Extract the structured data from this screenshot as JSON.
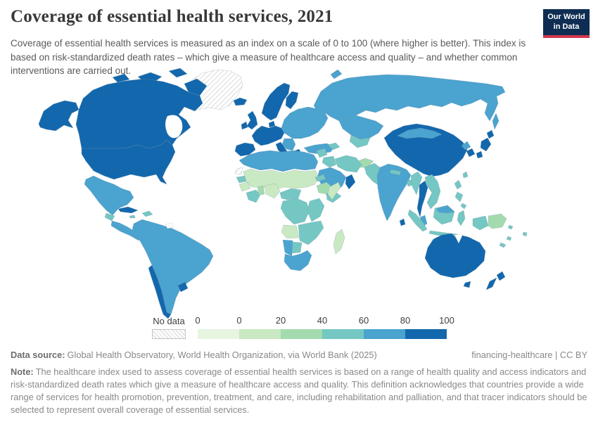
{
  "header": {
    "title": "Coverage of essential health services, 2021",
    "subtitle": "Coverage of essential health services is measured as an index on a scale of 0 to 100 (where higher is better). This index is based on risk-standardized death rates – which give a measure of healthcare access and quality – and whether common interventions are carried out."
  },
  "logo": {
    "line1": "Our World",
    "line2": "in Data",
    "bg": "#0f2d52",
    "accent": "#d2364c"
  },
  "legend": {
    "no_data_label": "No data",
    "tick_labels": [
      "0",
      "0",
      "20",
      "40",
      "60",
      "80",
      "100"
    ],
    "bins": [
      {
        "range": "0-0",
        "color": "#e7f5e1"
      },
      {
        "range": "0-20",
        "color": "#c9e9c2"
      },
      {
        "range": "20-40",
        "color": "#a3dbae"
      },
      {
        "range": "40-60",
        "color": "#74c7c3"
      },
      {
        "range": "60-80",
        "color": "#4ba3cf"
      },
      {
        "range": "80-100",
        "color": "#1368ad"
      }
    ]
  },
  "footer": {
    "source_label": "Data source:",
    "source_text": "Global Health Observatory, World Health Organization, via World Bank (2025)",
    "attribution": "financing-healthcare | CC BY",
    "note_label": "Note:",
    "note_text": "The healthcare index used to assess coverage of essential health services is based on a range of health quality and access indicators and risk-standardized death rates which give a measure of healthcare access and quality. This definition acknowledges that countries provide a wide range of services for health promotion, prevention, treatment, and care, including rehabilitation and palliation, and that tracer indicators should be selected to represent overall coverage of essential services."
  },
  "chart_data": {
    "type": "choropleth_map",
    "title": "Coverage of essential health services, 2021",
    "unit": "index (0-100, higher is better)",
    "legend_bins": [
      "0-0",
      "0-20",
      "20-40",
      "40-60",
      "60-80",
      "80-100"
    ],
    "no_data": "No data (hatched)",
    "regions": [
      {
        "id": "canada",
        "label": "Canada",
        "bin": "80-100"
      },
      {
        "id": "usa",
        "label": "United States",
        "bin": "80-100"
      },
      {
        "id": "greenland",
        "label": "Greenland",
        "bin": "no-data"
      },
      {
        "id": "mexico",
        "label": "Mexico",
        "bin": "60-80"
      },
      {
        "id": "cuba",
        "label": "Cuba",
        "bin": "80-100"
      },
      {
        "id": "jamaica",
        "label": "Jamaica",
        "bin": "40-60"
      },
      {
        "id": "hispaniola",
        "label": "Haiti & Dominican Republic",
        "bin": "40-60"
      },
      {
        "id": "guatemala",
        "label": "Guatemala",
        "bin": "40-60"
      },
      {
        "id": "central-america",
        "label": "Central America",
        "bin": "60-80"
      },
      {
        "id": "south-america",
        "label": "South America (most countries)",
        "bin": "60-80"
      },
      {
        "id": "chile",
        "label": "Chile",
        "bin": "80-100"
      },
      {
        "id": "uruguay",
        "label": "Uruguay",
        "bin": "80-100"
      },
      {
        "id": "iceland",
        "label": "Iceland",
        "bin": "80-100"
      },
      {
        "id": "uk",
        "label": "United Kingdom",
        "bin": "80-100"
      },
      {
        "id": "ireland",
        "label": "Ireland",
        "bin": "80-100"
      },
      {
        "id": "scandinavia",
        "label": "Norway & Sweden",
        "bin": "80-100"
      },
      {
        "id": "finland",
        "label": "Finland",
        "bin": "80-100"
      },
      {
        "id": "denmark",
        "label": "Denmark",
        "bin": "80-100"
      },
      {
        "id": "western-europe",
        "label": "Western & Central Europe",
        "bin": "80-100"
      },
      {
        "id": "iberia",
        "label": "Spain & Portugal",
        "bin": "80-100"
      },
      {
        "id": "italy",
        "label": "Italy",
        "bin": "80-100"
      },
      {
        "id": "greece",
        "label": "Greece",
        "bin": "80-100"
      },
      {
        "id": "eastern-europe",
        "label": "Eastern Europe",
        "bin": "60-80"
      },
      {
        "id": "balkans",
        "label": "Balkans",
        "bin": "60-80"
      },
      {
        "id": "turkey",
        "label": "Turkey",
        "bin": "60-80"
      },
      {
        "id": "russia",
        "label": "Russia",
        "bin": "60-80"
      },
      {
        "id": "kazakhstan",
        "label": "Kazakhstan",
        "bin": "60-80"
      },
      {
        "id": "central-asia",
        "label": "Uzbekistan & Turkmenistan",
        "bin": "40-60"
      },
      {
        "id": "caucasus",
        "label": "Caucasus",
        "bin": "40-60"
      },
      {
        "id": "china",
        "label": "China",
        "bin": "80-100"
      },
      {
        "id": "mongolia",
        "label": "Mongolia",
        "bin": "60-80"
      },
      {
        "id": "japan",
        "label": "Japan",
        "bin": "80-100"
      },
      {
        "id": "north-korea",
        "label": "North Korea",
        "bin": "60-80"
      },
      {
        "id": "south-korea",
        "label": "South Korea",
        "bin": "80-100"
      },
      {
        "id": "taiwan",
        "label": "Taiwan",
        "bin": "40-60"
      },
      {
        "id": "india",
        "label": "India",
        "bin": "60-80"
      },
      {
        "id": "nepal",
        "label": "Nepal",
        "bin": "40-60"
      },
      {
        "id": "sri-lanka",
        "label": "Sri Lanka",
        "bin": "80-100"
      },
      {
        "id": "pakistan",
        "label": "Pakistan",
        "bin": "40-60"
      },
      {
        "id": "afghanistan",
        "label": "Afghanistan",
        "bin": "20-40"
      },
      {
        "id": "bangladesh",
        "label": "Bangladesh",
        "bin": "40-60"
      },
      {
        "id": "myanmar",
        "label": "Myanmar",
        "bin": "40-60"
      },
      {
        "id": "thailand",
        "label": "Thailand",
        "bin": "80-100"
      },
      {
        "id": "indochina",
        "label": "Vietnam, Laos & Cambodia",
        "bin": "40-60"
      },
      {
        "id": "malaysia",
        "label": "Malaysia",
        "bin": "60-80"
      },
      {
        "id": "indonesia",
        "label": "Indonesia",
        "bin": "40-60"
      },
      {
        "id": "philippines",
        "label": "Philippines",
        "bin": "40-60"
      },
      {
        "id": "west-papua",
        "label": "Indonesia (Papua)",
        "bin": "40-60"
      },
      {
        "id": "papua-new-guinea",
        "label": "Papua New Guinea",
        "bin": "20-40"
      },
      {
        "id": "pacific-islands",
        "label": "Pacific islands",
        "bin": "40-60"
      },
      {
        "id": "iran",
        "label": "Iran",
        "bin": "40-60"
      },
      {
        "id": "iraq",
        "label": "Iraq",
        "bin": "40-60"
      },
      {
        "id": "syria",
        "label": "Syria & Levant",
        "bin": "40-60"
      },
      {
        "id": "saudi-arabia",
        "label": "Saudi Arabia",
        "bin": "60-80"
      },
      {
        "id": "yemen",
        "label": "Yemen",
        "bin": "40-60"
      },
      {
        "id": "oman",
        "label": "Oman & UAE",
        "bin": "80-100"
      },
      {
        "id": "north-africa",
        "label": "Morocco, Algeria, Tunisia, Libya, Egypt",
        "bin": "60-80"
      },
      {
        "id": "western-sahara",
        "label": "Western Sahara",
        "bin": "no-data"
      },
      {
        "id": "sahel",
        "label": "Mauritania, Mali, Niger, Chad, Sudan",
        "bin": "0-20"
      },
      {
        "id": "senegal",
        "label": "Senegal & Gambia",
        "bin": "40-60"
      },
      {
        "id": "guinea",
        "label": "Guinea & Sierra Leone",
        "bin": "0-20"
      },
      {
        "id": "ghana",
        "label": "Côte d'Ivoire & Ghana",
        "bin": "40-60"
      },
      {
        "id": "benin-togo",
        "label": "Togo & Benin",
        "bin": "20-40"
      },
      {
        "id": "nigeria",
        "label": "Nigeria",
        "bin": "0-20"
      },
      {
        "id": "cameroon",
        "label": "Cameroon & Central African Republic",
        "bin": "40-60"
      },
      {
        "id": "eritrea",
        "label": "Eritrea & Djibouti",
        "bin": "40-60"
      },
      {
        "id": "ethiopia",
        "label": "Ethiopia",
        "bin": "20-40"
      },
      {
        "id": "somalia",
        "label": "Somalia",
        "bin": "0-20"
      },
      {
        "id": "drc",
        "label": "DR Congo & Congo",
        "bin": "40-60"
      },
      {
        "id": "east-africa",
        "label": "Kenya, Uganda & Tanzania",
        "bin": "40-60"
      },
      {
        "id": "angola",
        "label": "Angola",
        "bin": "0-20"
      },
      {
        "id": "zambezi",
        "label": "Zambia, Zimbabwe & Mozambique",
        "bin": "40-60"
      },
      {
        "id": "namibia",
        "label": "Namibia",
        "bin": "60-80"
      },
      {
        "id": "botswana",
        "label": "Botswana",
        "bin": "40-60"
      },
      {
        "id": "south-africa",
        "label": "South Africa",
        "bin": "60-80"
      },
      {
        "id": "madagascar",
        "label": "Madagascar",
        "bin": "0-20"
      },
      {
        "id": "australia",
        "label": "Australia",
        "bin": "80-100"
      },
      {
        "id": "new-zealand",
        "label": "New Zealand",
        "bin": "80-100"
      }
    ]
  }
}
